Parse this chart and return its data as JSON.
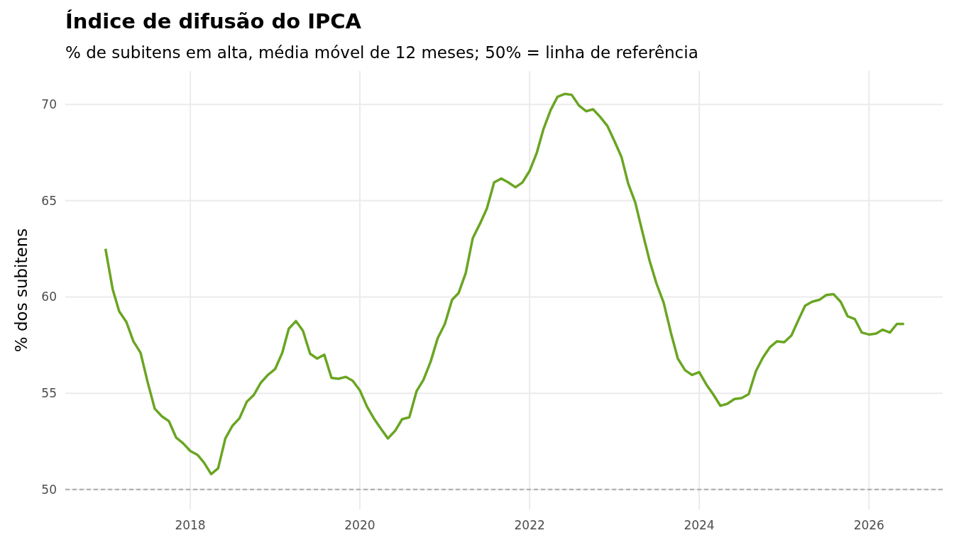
{
  "chart_data": {
    "type": "line",
    "title": "Índice de difusão do IPCA",
    "subtitle": "% de subitens em alta, média móvel de 12 meses; 50% = linha de referência",
    "ylabel": "% dos subitens",
    "x": [
      "2017-01",
      "2017-02",
      "2017-03",
      "2017-04",
      "2017-05",
      "2017-06",
      "2017-07",
      "2017-08",
      "2017-09",
      "2017-10",
      "2017-11",
      "2017-12",
      "2018-01",
      "2018-02",
      "2018-03",
      "2018-04",
      "2018-05",
      "2018-06",
      "2018-07",
      "2018-08",
      "2018-09",
      "2018-10",
      "2018-11",
      "2018-12",
      "2019-01",
      "2019-02",
      "2019-03",
      "2019-04",
      "2019-05",
      "2019-06",
      "2019-07",
      "2019-08",
      "2019-09",
      "2019-10",
      "2019-11",
      "2019-12",
      "2020-01",
      "2020-02",
      "2020-03",
      "2020-04",
      "2020-05",
      "2020-06",
      "2020-07",
      "2020-08",
      "2020-09",
      "2020-10",
      "2020-11",
      "2020-12",
      "2021-01",
      "2021-02",
      "2021-03",
      "2021-04",
      "2021-05",
      "2021-06",
      "2021-07",
      "2021-08",
      "2021-09",
      "2021-10",
      "2021-11",
      "2021-12",
      "2022-01",
      "2022-02",
      "2022-03",
      "2022-04",
      "2022-05",
      "2022-06",
      "2022-07",
      "2022-08",
      "2022-09",
      "2022-10",
      "2022-11",
      "2022-12",
      "2023-01",
      "2023-02",
      "2023-03",
      "2023-04",
      "2023-05",
      "2023-06",
      "2023-07",
      "2023-08",
      "2023-09",
      "2023-10",
      "2023-11",
      "2023-12",
      "2024-01",
      "2024-02",
      "2024-03",
      "2024-04",
      "2024-05",
      "2024-06",
      "2024-07",
      "2024-08",
      "2024-09",
      "2024-10",
      "2024-11",
      "2024-12",
      "2025-01",
      "2025-02",
      "2025-03",
      "2025-04",
      "2025-05",
      "2025-06",
      "2025-07",
      "2025-08",
      "2025-09",
      "2025-10",
      "2025-11",
      "2025-12",
      "2026-01",
      "2026-02",
      "2026-03",
      "2026-04",
      "2026-05",
      "2026-06"
    ],
    "series": [
      {
        "color": "#6aa522",
        "values": [
          62.5,
          60.4,
          59.25,
          58.7,
          57.7,
          57.1,
          55.6,
          54.2,
          53.8,
          53.55,
          52.7,
          52.4,
          52.0,
          51.8,
          51.4,
          50.8,
          51.1,
          52.65,
          53.3,
          53.7,
          54.55,
          54.9,
          55.55,
          55.95,
          56.25,
          57.1,
          58.35,
          58.75,
          58.25,
          57.05,
          56.8,
          57.0,
          55.8,
          55.75,
          55.85,
          55.65,
          55.15,
          54.3,
          53.7,
          53.15,
          52.65,
          53.05,
          53.65,
          53.75,
          55.1,
          55.7,
          56.65,
          57.85,
          58.6,
          59.85,
          60.2,
          61.25,
          63.05,
          63.8,
          64.6,
          65.95,
          66.15,
          65.95,
          65.7,
          65.95,
          66.55,
          67.5,
          68.7,
          69.7,
          70.4,
          70.55,
          70.5,
          69.95,
          69.65,
          69.75,
          69.35,
          68.9,
          68.1,
          67.25,
          65.9,
          64.9,
          63.4,
          61.9,
          60.7,
          59.7,
          58.15,
          56.8,
          56.2,
          55.95,
          56.1,
          55.45,
          54.95,
          54.35,
          54.45,
          54.7,
          54.75,
          54.95,
          56.15,
          56.85,
          57.4,
          57.7,
          57.65,
          58.0,
          58.75,
          59.55,
          59.75,
          59.85,
          60.1,
          60.15,
          59.75,
          59.0,
          58.85,
          58.15,
          58.05,
          58.1,
          58.3,
          58.15,
          58.6,
          58.6
        ]
      }
    ],
    "xlim": [
      "2016-07-12",
      "2026-11-14"
    ],
    "xticks": [
      {
        "value": "2018",
        "label": "2018"
      },
      {
        "value": "2020",
        "label": "2020"
      },
      {
        "value": "2022",
        "label": "2022"
      },
      {
        "value": "2024",
        "label": "2024"
      },
      {
        "value": "2026",
        "label": "2026"
      }
    ],
    "ylim": [
      48.96,
      71.74
    ],
    "yticks": [
      50,
      55,
      60,
      65,
      70
    ],
    "grid": true,
    "line_style": "solid",
    "ref_lines": [
      {
        "axis": "y",
        "value": 50,
        "color": "#aaaaaa",
        "line_style": "dashed"
      }
    ]
  }
}
